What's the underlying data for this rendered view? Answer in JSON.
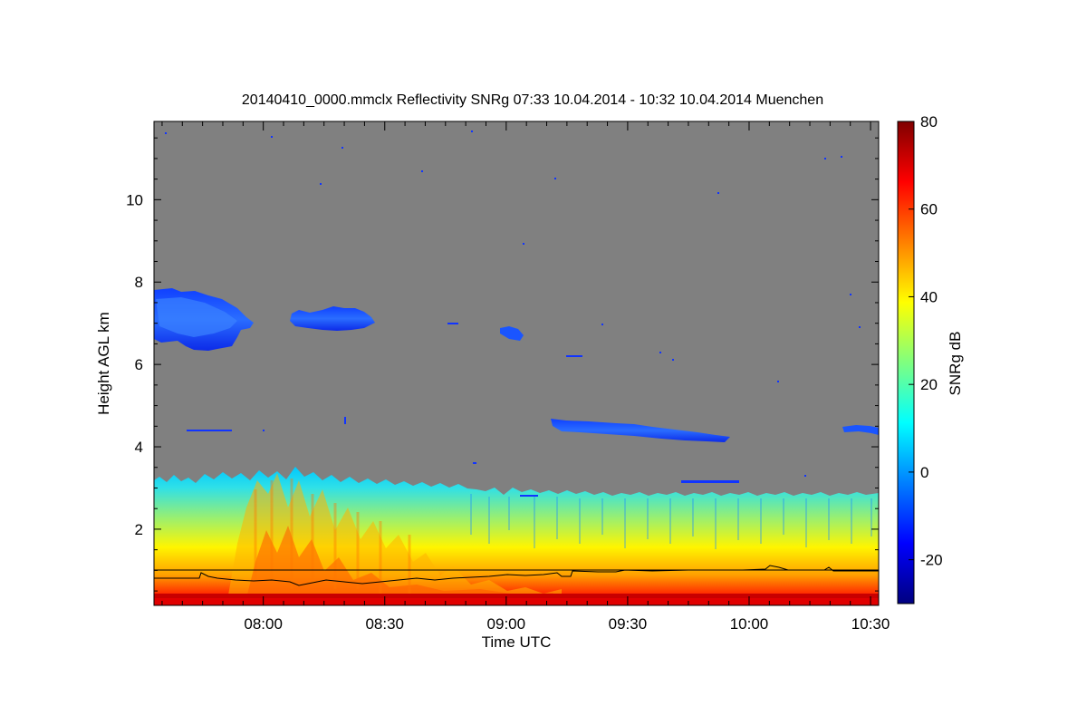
{
  "chart_data": {
    "type": "heatmap",
    "title": "20140410_0000.mmclx Reflectivity SNRg   07:33 10.04.2014 - 10:32 10.04.2014 Muenchen",
    "xlabel": "Time UTC",
    "ylabel": "Height AGL km",
    "colorbar_label": "SNRg dB",
    "x_range": [
      "07:33",
      "10:32"
    ],
    "x_ticks": [
      "08:00",
      "08:30",
      "09:00",
      "09:30",
      "10:00",
      "10:30"
    ],
    "y_range_km": [
      0.15,
      11.9
    ],
    "y_ticks": [
      "2",
      "4",
      "6",
      "8",
      "10"
    ],
    "colorbar_range_db": [
      -30,
      80
    ],
    "colorbar_ticks": [
      "80",
      "60",
      "40",
      "20",
      "0",
      "-20"
    ],
    "colormap": "jet",
    "background_color": "#808080",
    "grid": false,
    "features": {
      "boundary_layer_top_km": [
        3.2,
        3.0
      ],
      "cloud_layers": [
        {
          "time_start": "07:33",
          "time_end": "08:03",
          "base_km": 6.4,
          "top_km": 7.9,
          "snr_db": -15
        },
        {
          "time_start": "08:07",
          "time_end": "08:30",
          "base_km": 6.9,
          "top_km": 7.3,
          "snr_db": -15
        },
        {
          "time_start": "09:14",
          "time_end": "09:54",
          "base_km": 4.2,
          "top_km": 4.7,
          "snr_db": -18
        },
        {
          "time_start": "10:27",
          "time_end": "10:32",
          "base_km": 4.3,
          "top_km": 4.5,
          "snr_db": -20
        }
      ],
      "reference_line_km": 1.0
    }
  }
}
